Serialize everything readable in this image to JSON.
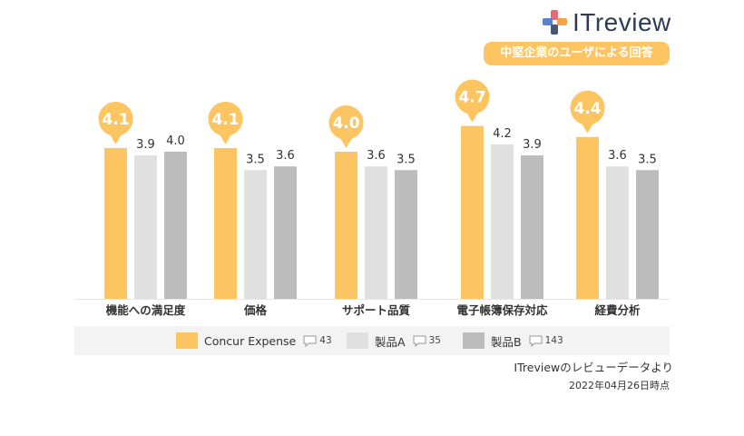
{
  "brand": {
    "name": "ITreview",
    "colors": [
      "#e56a78",
      "#5a82c8",
      "#4b5670",
      "#f0a34a"
    ]
  },
  "subtitle": "中堅企業のユーザによる回答",
  "chart_data": {
    "type": "bar",
    "categories": [
      "機能への満足度",
      "価格",
      "サポート品質",
      "電子帳簿保存対応",
      "経費分析"
    ],
    "series": [
      {
        "name": "Concur Expense",
        "values": [
          4.1,
          4.1,
          4.0,
          4.7,
          4.4
        ],
        "color": "#fdc562",
        "review_count": "43"
      },
      {
        "name": "製品A",
        "values": [
          3.9,
          3.5,
          3.6,
          4.2,
          3.6
        ],
        "color": "#e0e0e0",
        "review_count": "35"
      },
      {
        "name": "製品B",
        "values": [
          4.0,
          3.6,
          3.5,
          3.9,
          3.5
        ],
        "color": "#bcbcbc",
        "review_count": "143"
      }
    ],
    "ylim": [
      0,
      5
    ],
    "legend": "bottom",
    "highlight_series": "Concur Expense"
  },
  "footer": {
    "note": "ITreviewのレビューデータより",
    "date": "2022年04月26日時点"
  }
}
